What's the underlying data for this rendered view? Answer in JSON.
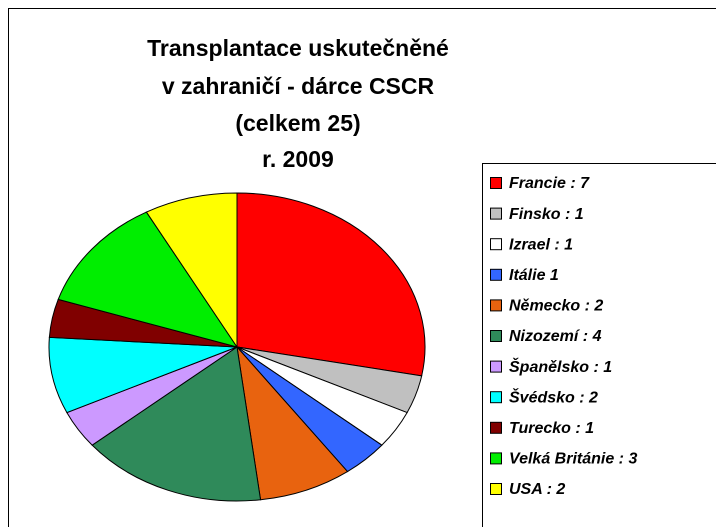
{
  "chart_data": {
    "type": "pie",
    "title_lines": [
      "Transplantace uskutečněné",
      "v zahraničí  -  dárce CSCR",
      "(celkem 25)",
      "r. 2009"
    ],
    "categories": [
      "Francie :  7",
      "Finsko : 1",
      "Izrael :  1",
      "Itálie  1",
      "Německo : 2",
      "Nizozemí :  4",
      "Španělsko :  1",
      "Švédsko : 2",
      "Turecko : 1",
      "Velká Británie :  3",
      "USA : 2"
    ],
    "values": [
      7,
      1,
      1,
      1,
      2,
      4,
      1,
      2,
      1,
      3,
      2
    ],
    "colors": [
      "#ff0000",
      "#c0c0c0",
      "#ffffff",
      "#3366ff",
      "#e8630f",
      "#2f8a5a",
      "#cc99ff",
      "#00ffff",
      "#800000",
      "#00ee00",
      "#ffff00"
    ],
    "legend": "right"
  }
}
